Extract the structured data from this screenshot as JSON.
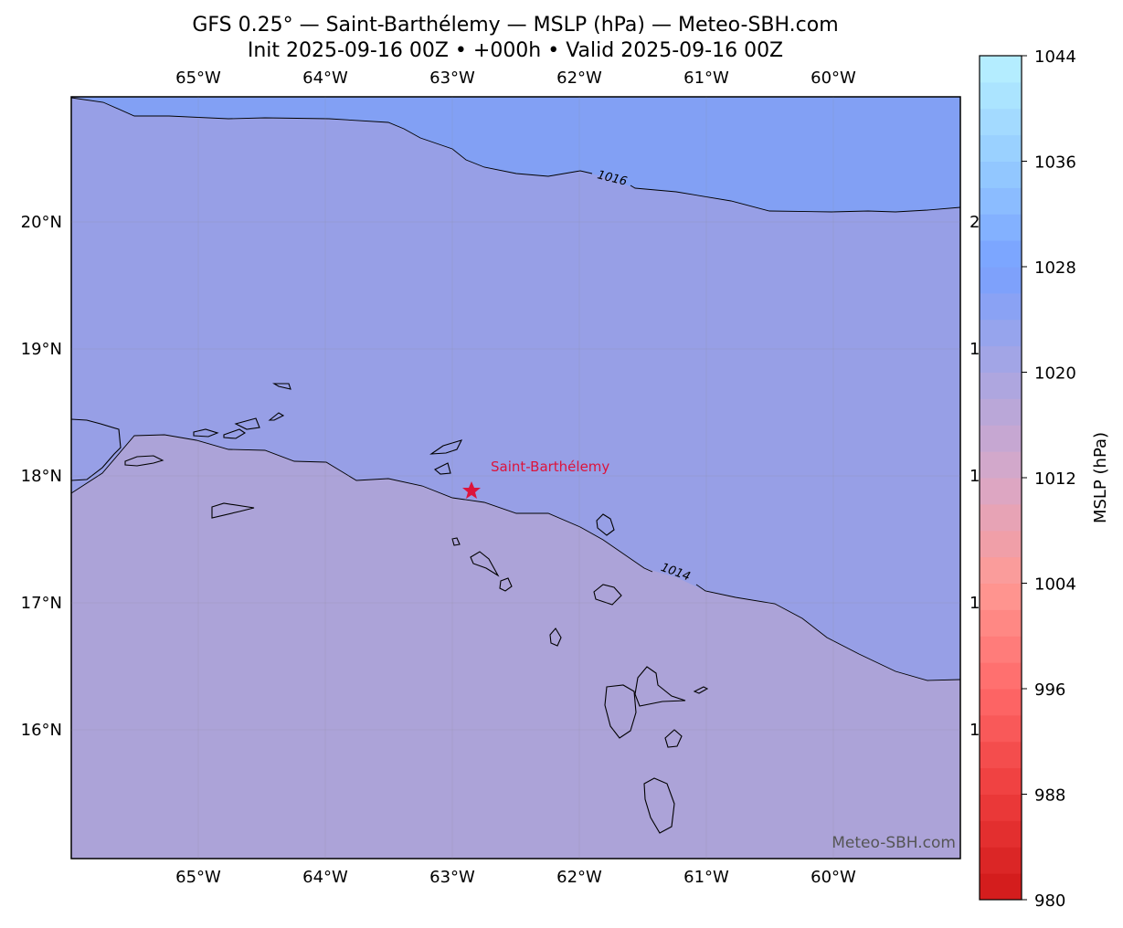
{
  "title": "GFS 0.25° — Saint-Barthélemy — MSLP (hPa) — Meteo-SBH.com",
  "subtitle": "Init 2025-09-16 00Z • +000h • Valid 2025-09-16 00Z",
  "map": {
    "lon_labels": [
      "65°W",
      "64°W",
      "63°W",
      "62°W",
      "61°W",
      "60°W"
    ],
    "lat_labels": [
      "20°N",
      "19°N",
      "18°N",
      "17°N",
      "16°N"
    ],
    "contour_levels": [
      1014,
      1016
    ],
    "marker_label": "Saint-Barthélemy",
    "watermark": "Meteo-SBH.com"
  },
  "colorbar": {
    "label": "MSLP (hPa)",
    "range": [
      980,
      1044
    ],
    "ticks": [
      980,
      988,
      996,
      1004,
      1012,
      1020,
      1028,
      1036,
      1044
    ],
    "colormap": [
      "#d01818",
      "#ee3c3c",
      "#ff6a6a",
      "#ff9a94",
      "#d8a8c8",
      "#a8a6e2",
      "#78a0ff",
      "#96ccff",
      "#b8f2ff"
    ]
  }
}
